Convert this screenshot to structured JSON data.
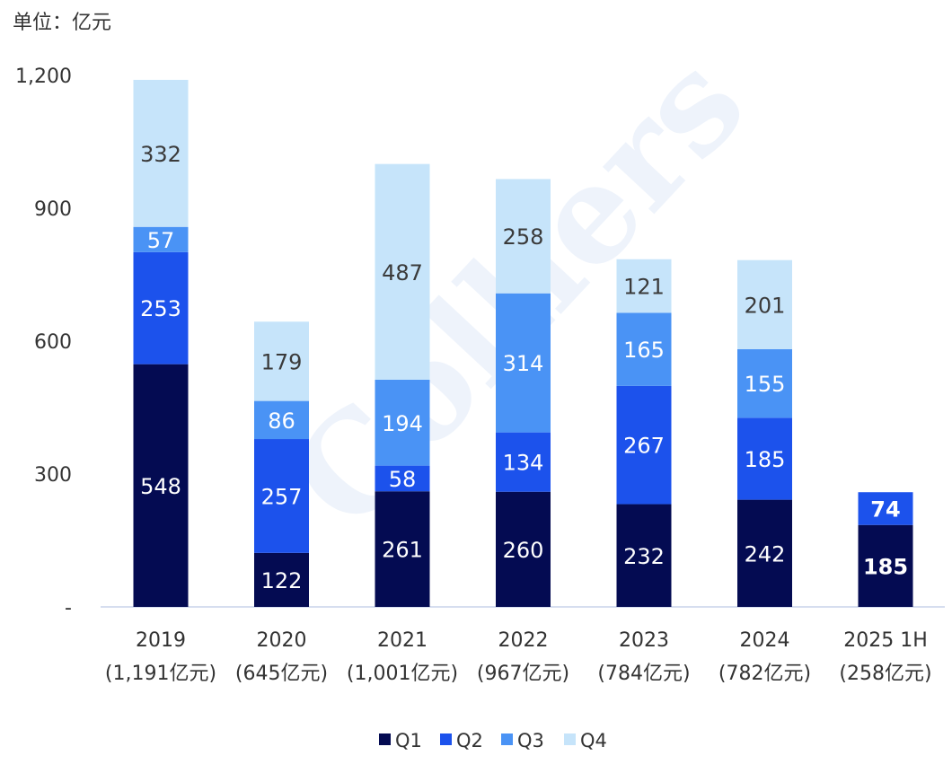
{
  "chart_data": {
    "type": "bar",
    "stacked": true,
    "unit_label": "单位：亿元",
    "watermark": "Colliers",
    "categories": [
      "2019",
      "2020",
      "2021",
      "2022",
      "2023",
      "2024",
      "2025 1H"
    ],
    "category_sublabels": [
      "(1,191亿元)",
      "(645亿元)",
      "(1,001亿元)",
      "(967亿元)",
      "(784亿元)",
      "(782亿元)",
      "(258亿元)"
    ],
    "yticks": [
      {
        "value": 0,
        "label": "-"
      },
      {
        "value": 300,
        "label": "300"
      },
      {
        "value": 600,
        "label": "600"
      },
      {
        "value": 900,
        "label": "900"
      },
      {
        "value": 1200,
        "label": "1,200"
      }
    ],
    "ylim": [
      0,
      1200
    ],
    "legend_position": "bottom",
    "series": [
      {
        "name": "Q1",
        "color": "#040b52",
        "label_color": "#ffffff",
        "values": [
          548,
          122,
          261,
          260,
          232,
          242,
          185
        ]
      },
      {
        "name": "Q2",
        "color": "#1c52ec",
        "label_color": "#ffffff",
        "values": [
          253,
          257,
          58,
          134,
          267,
          185,
          74
        ]
      },
      {
        "name": "Q3",
        "color": "#4a93f5",
        "label_color": "#ffffff",
        "values": [
          57,
          86,
          194,
          314,
          165,
          155,
          null
        ]
      },
      {
        "name": "Q4",
        "color": "#c6e4fa",
        "label_color": "#3a3a3a",
        "values": [
          332,
          179,
          487,
          258,
          121,
          201,
          null
        ]
      }
    ],
    "bold_label_categories": [
      "2025 1H"
    ]
  }
}
